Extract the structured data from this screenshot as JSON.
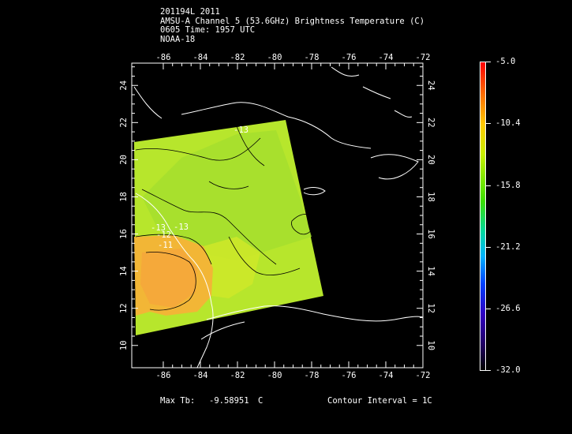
{
  "header": {
    "line1": "201194L 2011",
    "line2": "AMSU-A Channel 5 (53.6GHz) Brightness Temperature (C)",
    "line3": "0605 Time: 1957 UTC",
    "line4": "NOAA-18"
  },
  "map": {
    "lon_labels": [
      "-86",
      "-84",
      "-82",
      "-80",
      "-78",
      "-76",
      "-74",
      "-72"
    ],
    "lat_labels": [
      "10",
      "12",
      "14",
      "16",
      "18",
      "20",
      "22",
      "24"
    ],
    "contour_labels": [
      "-13",
      "-13",
      "-12",
      "-11",
      "-13"
    ],
    "swath_colors": {
      "cool": "#93e233",
      "mid": "#c6ea2a",
      "warm": "#f5b436",
      "hot": "#f0a030"
    }
  },
  "colorbar": {
    "labels": [
      "-5.0",
      "-10.4",
      "-15.8",
      "-21.2",
      "-26.6",
      "-32.0"
    ]
  },
  "footer": {
    "max_label": "Max Tb:",
    "max_value": "-9.58951",
    "max_unit": "C",
    "contour_text": "Contour Interval = 1C"
  }
}
